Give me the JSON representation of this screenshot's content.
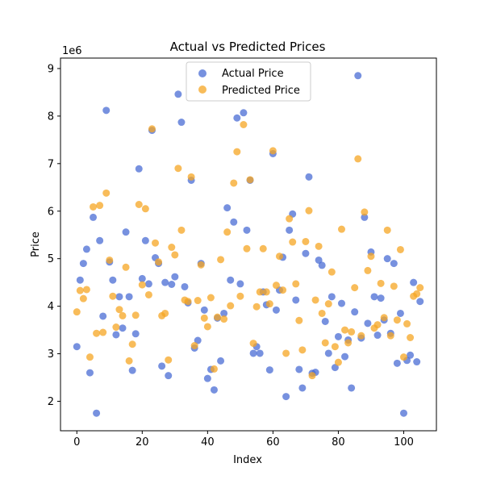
{
  "chart_data": {
    "type": "scatter",
    "title": "Actual vs Predicted Prices",
    "xlabel": "Index",
    "ylabel": "Price",
    "y_offset_text": "1e6",
    "xlim": [
      -5,
      110
    ],
    "ylim": [
      1.38,
      9.22
    ],
    "xticks": [
      0,
      20,
      40,
      60,
      80,
      100
    ],
    "yticks": [
      2,
      3,
      4,
      5,
      6,
      7,
      8,
      9
    ],
    "grid": false,
    "legend": "upper center",
    "series": [
      {
        "name": "Actual Price",
        "color": "#4a6cd4",
        "values": [
          3.15,
          4.55,
          4.9,
          5.2,
          2.6,
          5.87,
          1.75,
          5.38,
          3.79,
          8.12,
          4.93,
          4.55,
          3.4,
          4.2,
          3.54,
          5.56,
          4.2,
          2.65,
          3.42,
          6.89,
          4.58,
          5.38,
          4.47,
          7.7,
          5.02,
          4.9,
          2.74,
          4.5,
          2.54,
          4.46,
          4.62,
          8.46,
          7.87,
          4.41,
          4.07,
          6.65,
          3.12,
          3.28,
          4.9,
          3.92,
          2.48,
          2.67,
          2.24,
          3.75,
          2.85,
          3.85,
          6.07,
          4.55,
          5.77,
          7.96,
          4.47,
          8.07,
          5.6,
          6.65,
          3.01,
          3.15,
          3.01,
          4.3,
          4.03,
          2.66,
          7.21,
          3.92,
          4.34,
          5.03,
          2.1,
          5.6,
          5.94,
          4.13,
          2.67,
          2.28,
          5.11,
          6.72,
          2.59,
          2.61,
          4.97,
          4.86,
          3.68,
          3.01,
          4.2,
          2.71,
          3.36,
          4.06,
          2.94,
          3.29,
          2.28,
          3.88,
          8.85,
          3.33,
          5.87,
          3.64,
          5.14,
          4.2,
          3.39,
          4.17,
          3.71,
          5.0,
          3.43,
          4.9,
          2.8,
          3.85,
          1.75,
          2.86,
          2.97,
          4.5,
          2.83,
          4.1
        ]
      },
      {
        "name": "Predicted Price",
        "color": "#f5a623",
        "values": [
          3.88,
          4.33,
          4.16,
          4.35,
          2.93,
          6.09,
          3.43,
          6.12,
          3.45,
          6.38,
          4.97,
          4.21,
          3.56,
          3.93,
          3.8,
          4.82,
          2.85,
          3.2,
          3.81,
          6.14,
          4.45,
          6.05,
          4.24,
          7.73,
          5.33,
          4.93,
          3.8,
          3.85,
          2.87,
          5.24,
          5.08,
          6.9,
          5.6,
          4.13,
          4.1,
          6.72,
          3.17,
          4.12,
          4.87,
          3.75,
          3.57,
          4.18,
          2.68,
          3.77,
          4.98,
          3.73,
          5.56,
          4.01,
          6.59,
          7.25,
          4.21,
          7.82,
          5.21,
          6.66,
          3.22,
          3.99,
          4.3,
          5.21,
          4.3,
          4.05,
          7.27,
          4.44,
          5.05,
          4.34,
          3.01,
          5.84,
          5.35,
          4.47,
          3.7,
          3.08,
          5.36,
          6.01,
          2.54,
          4.13,
          5.26,
          3.85,
          3.23,
          4.05,
          4.72,
          3.15,
          2.82,
          5.62,
          3.5,
          3.23,
          3.46,
          4.39,
          7.1,
          3.38,
          5.98,
          4.75,
          5.05,
          3.54,
          3.61,
          4.48,
          3.76,
          5.6,
          3.38,
          4.42,
          3.71,
          5.19,
          2.93,
          3.63,
          3.34,
          4.21,
          4.26,
          4.39
        ]
      }
    ]
  }
}
